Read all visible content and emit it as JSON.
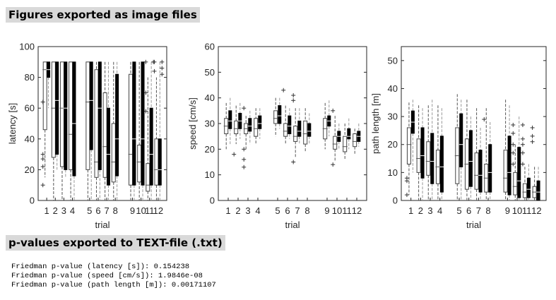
{
  "headings": {
    "figures": "Figures exported as image files",
    "pvalues": "p-values exported to TEXT-file (.txt)"
  },
  "results": [
    "Friedman p-value (latency [s]): 0.154238",
    "Friedman p-value (speed [cm/s]): 1.9846e-08",
    "Friedman p-value (path length [m]): 0.00171107"
  ],
  "chart_data": [
    {
      "type": "box",
      "xlabel": "trial",
      "ylabel": "latency [s]",
      "ylim": [
        0,
        100
      ],
      "yticks": [
        0,
        20,
        40,
        60,
        80,
        100
      ],
      "categories": [
        "1",
        "2",
        "3",
        "4",
        "5",
        "6",
        "7",
        "8",
        "9",
        "10",
        "11",
        "12"
      ],
      "series": [
        {
          "style": "open",
          "boxes": [
            {
              "whisk": [
                15,
                90
              ],
              "box": [
                46,
                90
              ],
              "med": 85,
              "out": [
                64,
                30,
                27,
                22,
                10
              ]
            },
            {
              "whisk": [
                0,
                90
              ],
              "box": [
                28,
                90
              ],
              "med": 60
            },
            {
              "whisk": [
                0,
                90
              ],
              "box": [
                22,
                90
              ],
              "med": 60
            },
            {
              "whisk": [
                0,
                90
              ],
              "box": [
                20,
                90
              ],
              "med": 43
            },
            {
              "whisk": [
                0,
                90
              ],
              "box": [
                20,
                90
              ],
              "med": 64
            },
            {
              "whisk": [
                0,
                90
              ],
              "box": [
                15,
                85
              ],
              "med": 25
            },
            {
              "whisk": [
                0,
                90
              ],
              "box": [
                15,
                70
              ],
              "med": 35
            },
            {
              "whisk": [
                0,
                90
              ],
              "box": [
                12,
                50
              ],
              "med": 25
            },
            {
              "whisk": [
                0,
                90
              ],
              "box": [
                10,
                82
              ],
              "med": 30
            },
            {
              "whisk": [
                0,
                90
              ],
              "box": [
                12,
                36
              ],
              "med": 25
            },
            {
              "whisk": [
                0,
                80
              ],
              "box": [
                6,
                24
              ],
              "med": 10,
              "out": [
                90,
                70,
                58
              ]
            },
            {
              "whisk": [
                0,
                80
              ],
              "box": [
                10,
                40
              ],
              "med": 20,
              "out": [
                90,
                84
              ]
            }
          ]
        },
        {
          "style": "filled",
          "boxes": [
            {
              "whisk": [
                60,
                90
              ],
              "box": [
                80,
                90
              ],
              "med": 85
            },
            {
              "whisk": [
                20,
                90
              ],
              "box": [
                30,
                90
              ],
              "med": 65
            },
            {
              "whisk": [
                15,
                90
              ],
              "box": [
                20,
                90
              ],
              "med": 60
            },
            {
              "whisk": [
                0,
                90
              ],
              "box": [
                16,
                90
              ],
              "med": 50
            },
            {
              "whisk": [
                0,
                90
              ],
              "box": [
                33,
                90
              ],
              "med": 65
            },
            {
              "whisk": [
                0,
                90
              ],
              "box": [
                20,
                90
              ],
              "med": 60
            },
            {
              "whisk": [
                0,
                90
              ],
              "box": [
                10,
                60
              ],
              "med": 30
            },
            {
              "whisk": [
                0,
                90
              ],
              "box": [
                16,
                82
              ],
              "med": 40
            },
            {
              "whisk": [
                0,
                90
              ],
              "box": [
                10,
                90
              ],
              "med": 40
            },
            {
              "whisk": [
                0,
                90
              ],
              "box": [
                10,
                90
              ],
              "med": 40
            },
            {
              "whisk": [
                0,
                90
              ],
              "box": [
                10,
                60
              ],
              "med": 30,
              "out": [
                90
              ]
            },
            {
              "whisk": [
                0,
                90
              ],
              "box": [
                10,
                40
              ],
              "med": 20,
              "out": [
                90,
                86,
                82
              ]
            }
          ]
        }
      ]
    },
    {
      "type": "box",
      "xlabel": "trial",
      "ylabel": "speed [cm/s]",
      "ylim": [
        0,
        60
      ],
      "yticks": [
        0,
        10,
        20,
        30,
        40,
        50,
        60
      ],
      "categories": [
        "1",
        "2",
        "3",
        "4",
        "5",
        "6",
        "7",
        "8",
        "9",
        "10",
        "11",
        "12"
      ],
      "series": [
        {
          "style": "open",
          "boxes": [
            {
              "whisk": [
                20,
                38
              ],
              "box": [
                26,
                32
              ],
              "med": 29
            },
            {
              "whisk": [
                22,
                37
              ],
              "box": [
                26,
                31
              ],
              "med": 28,
              "out": [
                18
              ]
            },
            {
              "whisk": [
                20,
                33
              ],
              "box": [
                26,
                30
              ],
              "med": 28,
              "out": [
                36,
                20,
                16,
                13
              ]
            },
            {
              "whisk": [
                22,
                36
              ],
              "box": [
                25,
                32
              ],
              "med": 28
            },
            {
              "whisk": [
                25,
                40
              ],
              "box": [
                30,
                35
              ],
              "med": 32
            },
            {
              "whisk": [
                22,
                37
              ],
              "box": [
                25,
                30
              ],
              "med": 27,
              "out": [
                43
              ]
            },
            {
              "whisk": [
                17,
                36
              ],
              "box": [
                23,
                29
              ],
              "med": 25,
              "out": [
                41,
                39,
                15
              ]
            },
            {
              "whisk": [
                19,
                36
              ],
              "box": [
                22,
                31
              ],
              "med": 26
            },
            {
              "whisk": [
                20,
                38
              ],
              "box": [
                24,
                32
              ],
              "med": 28
            },
            {
              "whisk": [
                15,
                33
              ],
              "box": [
                20,
                25
              ],
              "med": 22,
              "out": [
                35,
                14
              ]
            },
            {
              "whisk": [
                16,
                30
              ],
              "box": [
                19,
                25
              ],
              "med": 21
            },
            {
              "whisk": [
                18,
                28
              ],
              "box": [
                21,
                26
              ],
              "med": 23
            }
          ]
        },
        {
          "style": "filled",
          "boxes": [
            {
              "whisk": [
                22,
                40
              ],
              "box": [
                28,
                35
              ],
              "med": 31
            },
            {
              "whisk": [
                24,
                38
              ],
              "box": [
                28,
                34
              ],
              "med": 31
            },
            {
              "whisk": [
                22,
                35
              ],
              "box": [
                27,
                32
              ],
              "med": 29
            },
            {
              "whisk": [
                24,
                36
              ],
              "box": [
                28,
                33
              ],
              "med": 30
            },
            {
              "whisk": [
                28,
                40
              ],
              "box": [
                30,
                37
              ],
              "med": 33
            },
            {
              "whisk": [
                24,
                36
              ],
              "box": [
                26,
                33
              ],
              "med": 29
            },
            {
              "whisk": [
                22,
                36
              ],
              "box": [
                25,
                31
              ],
              "med": 27
            },
            {
              "whisk": [
                22,
                34
              ],
              "box": [
                25,
                30
              ],
              "med": 27
            },
            {
              "whisk": [
                25,
                39
              ],
              "box": [
                29,
                33
              ],
              "med": 31
            },
            {
              "whisk": [
                20,
                30
              ],
              "box": [
                23,
                27
              ],
              "med": 25
            },
            {
              "whisk": [
                20,
                32
              ],
              "box": [
                24,
                28
              ],
              "med": 25
            },
            {
              "whisk": [
                21,
                30
              ],
              "box": [
                23,
                27
              ],
              "med": 25
            }
          ]
        }
      ]
    },
    {
      "type": "box",
      "xlabel": "trial",
      "ylabel": "path length [m]",
      "ylim": [
        0,
        55
      ],
      "yticks": [
        0,
        10,
        20,
        30,
        40,
        50
      ],
      "categories": [
        "1",
        "2",
        "3",
        "4",
        "5",
        "6",
        "7",
        "8",
        "9",
        "10",
        "11",
        "12"
      ],
      "series": [
        {
          "style": "open",
          "boxes": [
            {
              "whisk": [
                2,
                35
              ],
              "box": [
                13,
                26
              ],
              "med": 20,
              "out": [
                8,
                7,
                2
              ]
            },
            {
              "whisk": [
                0,
                34
              ],
              "box": [
                10,
                22
              ],
              "med": 15
            },
            {
              "whisk": [
                0,
                34
              ],
              "box": [
                9,
                21
              ],
              "med": 14
            },
            {
              "whisk": [
                0,
                34
              ],
              "box": [
                6,
                18
              ],
              "med": 12
            },
            {
              "whisk": [
                0,
                38
              ],
              "box": [
                6,
                26
              ],
              "med": 16
            },
            {
              "whisk": [
                0,
                36
              ],
              "box": [
                4,
                22
              ],
              "med": 13
            },
            {
              "whisk": [
                0,
                33
              ],
              "box": [
                4,
                17
              ],
              "med": 9
            },
            {
              "whisk": [
                0,
                33
              ],
              "box": [
                3,
                13
              ],
              "med": 8,
              "out": [
                29
              ]
            },
            {
              "whisk": [
                0,
                36
              ],
              "box": [
                3,
                18
              ],
              "med": 8
            },
            {
              "whisk": [
                0,
                20
              ],
              "box": [
                2,
                10
              ],
              "med": 5,
              "out": [
                27,
                24,
                20,
                17,
                13
              ]
            },
            {
              "whisk": [
                0,
                12
              ],
              "box": [
                1,
                6
              ],
              "med": 3,
              "out": [
                27,
                22,
                20,
                17,
                13
              ]
            },
            {
              "whisk": [
                0,
                12
              ],
              "box": [
                1,
                5
              ],
              "med": 3,
              "out": [
                26,
                23,
                21
              ]
            }
          ]
        },
        {
          "style": "filled",
          "boxes": [
            {
              "whisk": [
                10,
                36
              ],
              "box": [
                24,
                32
              ],
              "med": 28
            },
            {
              "whisk": [
                0,
                33
              ],
              "box": [
                8,
                26
              ],
              "med": 16
            },
            {
              "whisk": [
                0,
                36
              ],
              "box": [
                6,
                24
              ],
              "med": 14
            },
            {
              "whisk": [
                0,
                33
              ],
              "box": [
                3,
                23
              ],
              "med": 12
            },
            {
              "whisk": [
                0,
                36
              ],
              "box": [
                12,
                31
              ],
              "med": 20
            },
            {
              "whisk": [
                0,
                30
              ],
              "box": [
                5,
                25
              ],
              "med": 14
            },
            {
              "whisk": [
                0,
                26
              ],
              "box": [
                3,
                18
              ],
              "med": 9
            },
            {
              "whisk": [
                0,
                28
              ],
              "box": [
                3,
                20
              ],
              "med": 10
            },
            {
              "whisk": [
                0,
                34
              ],
              "box": [
                2,
                23
              ],
              "med": 10
            },
            {
              "whisk": [
                0,
                30
              ],
              "box": [
                1,
                19
              ],
              "med": 7
            },
            {
              "whisk": [
                0,
                13
              ],
              "box": [
                1,
                8
              ],
              "med": 4
            },
            {
              "whisk": [
                0,
                12
              ],
              "box": [
                0,
                7
              ],
              "med": 3
            }
          ]
        }
      ]
    }
  ]
}
